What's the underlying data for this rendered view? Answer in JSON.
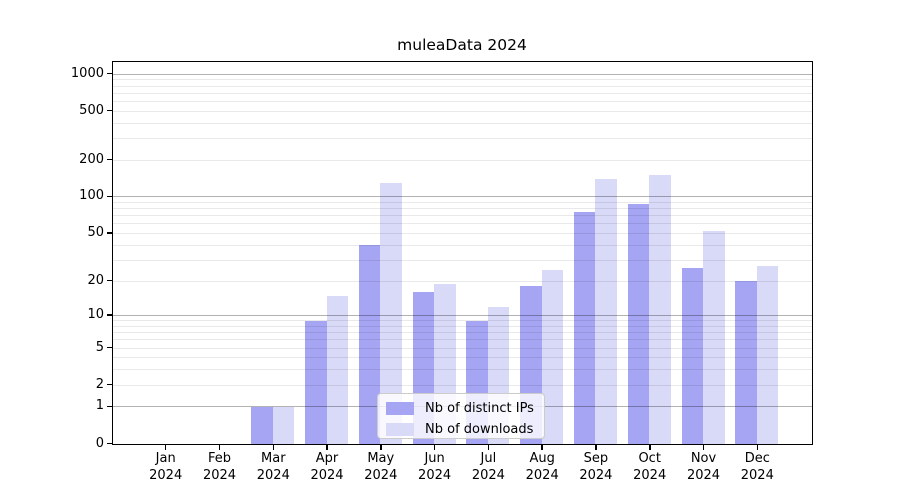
{
  "title": "muleaData 2024",
  "chart_data": {
    "type": "bar",
    "title": "muleaData 2024",
    "categories": [
      "Jan 2024",
      "Feb 2024",
      "Mar 2024",
      "Apr 2024",
      "May 2024",
      "Jun 2024",
      "Jul 2024",
      "Aug 2024",
      "Sep 2024",
      "Oct 2024",
      "Nov 2024",
      "Dec 2024"
    ],
    "series": [
      {
        "name": "Nb of distinct IPs",
        "color": "#a5a5f3",
        "values": [
          0,
          0,
          1,
          9,
          40,
          16,
          9,
          18,
          75,
          88,
          26,
          20
        ]
      },
      {
        "name": "Nb of downloads",
        "color": "#d9d9f8",
        "values": [
          0,
          0,
          1,
          15,
          130,
          19,
          12,
          25,
          140,
          150,
          52,
          27
        ]
      }
    ],
    "y_ticks": [
      0,
      1,
      2,
      5,
      10,
      20,
      50,
      100,
      200,
      500,
      1000
    ],
    "y_scale": "log10(1+x)",
    "ylim": [
      0,
      1230
    ],
    "xlabel": "",
    "ylabel": "",
    "grid": true,
    "legend_position": "lower center",
    "colors": {
      "major_grid": "#b2b2b2",
      "minor_grid": "#e9e9e9",
      "spine": "#000000",
      "text": "#000000",
      "background": "#ffffff"
    }
  }
}
